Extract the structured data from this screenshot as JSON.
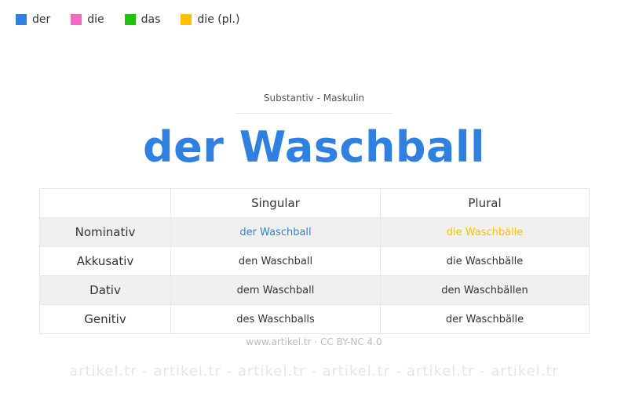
{
  "legend": [
    {
      "label": "der",
      "color": "#2f80e0"
    },
    {
      "label": "die",
      "color": "#ef6cc0"
    },
    {
      "label": "das",
      "color": "#22c010"
    },
    {
      "label": "die (pl.)",
      "color": "#ffc000"
    }
  ],
  "watermark": "artikel.tr - artikel.tr - artikel.tr - artikel.tr - artikel.tr - artikel.tr",
  "subtitle": "Substantiv  -  Maskulin",
  "title": "der Waschball",
  "table": {
    "headers": [
      "",
      "Singular",
      "Plural"
    ],
    "rows": [
      {
        "case": "Nominativ",
        "singular": "der Waschball",
        "plural": "die Waschbälle"
      },
      {
        "case": "Akkusativ",
        "singular": "den Waschball",
        "plural": "die Waschbälle"
      },
      {
        "case": "Dativ",
        "singular": "dem Waschball",
        "plural": "den Waschbällen"
      },
      {
        "case": "Genitiv",
        "singular": "des Waschballs",
        "plural": "der Waschbälle"
      }
    ]
  },
  "colors": {
    "singular_highlight": "#2f80e0",
    "plural_highlight": "#ffc000"
  },
  "footer": "www.artikel.tr · CC BY-NC 4.0"
}
